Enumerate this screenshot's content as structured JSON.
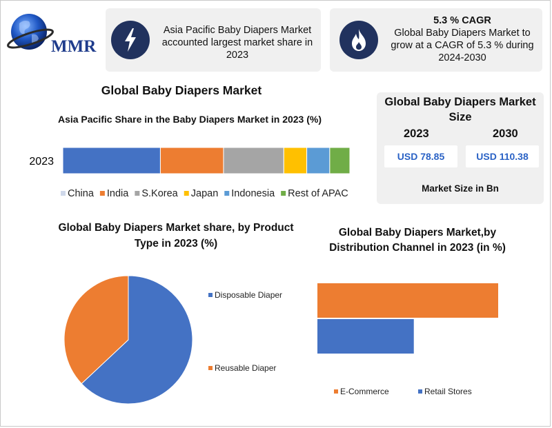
{
  "logo": {
    "text": "MMR"
  },
  "info_cards": [
    {
      "icon": "lightning-icon",
      "text": "Asia Pacific Baby Diapers Market accounted largest market share in 2023"
    },
    {
      "icon": "flame-icon",
      "title": "5.3 % CAGR",
      "text": "Global Baby Diapers Market to grow at a CAGR of 5.3 % during 2024-2030"
    }
  ],
  "main_title": "Global Baby Diapers Market",
  "market_size": {
    "title": "Global Baby Diapers Market Size",
    "years": [
      "2023",
      "2030"
    ],
    "values": [
      "USD 78.85",
      "USD 110.38"
    ],
    "unit_note": "Market Size in Bn"
  },
  "colors": {
    "blue": "#4472c4",
    "orange": "#ed7d31",
    "gray": "#a5a5a5",
    "yellow": "#ffc000",
    "light_blue": "#5b9bd5",
    "green": "#70ad47",
    "badge": "#21325e"
  },
  "chart_data": [
    {
      "type": "bar",
      "orientation": "horizontal-stacked",
      "title": "Asia Pacific Share in the Baby Diapers Market in 2023 (%)",
      "categories": [
        "2023"
      ],
      "series": [
        {
          "name": "China",
          "values": [
            34
          ],
          "color": "#4472c4"
        },
        {
          "name": "India",
          "values": [
            22
          ],
          "color": "#ed7d31"
        },
        {
          "name": "S.Korea",
          "values": [
            21
          ],
          "color": "#a5a5a5"
        },
        {
          "name": "Japan",
          "values": [
            8
          ],
          "color": "#ffc000"
        },
        {
          "name": "Indonesia",
          "values": [
            8
          ],
          "color": "#5b9bd5"
        },
        {
          "name": "Rest of APAC",
          "values": [
            7
          ],
          "color": "#70ad47"
        }
      ],
      "xlim": [
        0,
        100
      ],
      "legend": "bottom"
    },
    {
      "type": "pie",
      "title": "Global Baby Diapers Market share, by Product Type in 2023 (%)",
      "labels": [
        "Disposable Diaper",
        "Reusable Diaper"
      ],
      "values": [
        63,
        37
      ],
      "colors": [
        "#4472c4",
        "#ed7d31"
      ],
      "legend": "right"
    },
    {
      "type": "bar",
      "orientation": "horizontal",
      "title": "Global Baby Diapers Market,by Distribution Channel in 2023 (in %)",
      "categories": [
        "E-Commerce",
        "Retail Stores"
      ],
      "values": [
        60,
        32
      ],
      "colors": [
        "#ed7d31",
        "#4472c4"
      ],
      "xlim": [
        0,
        60
      ],
      "legend": "bottom"
    }
  ]
}
